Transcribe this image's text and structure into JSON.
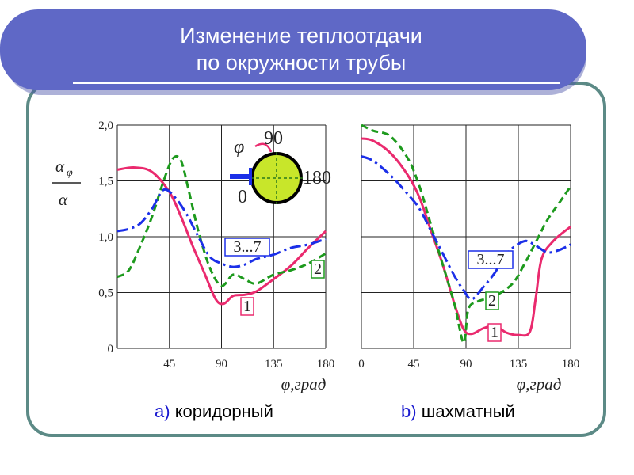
{
  "title": {
    "line1": "Изменение теплоотдачи",
    "line2": "по окружности трубы"
  },
  "colors": {
    "title_bar": "#5f68c6",
    "frame": "#5c8a86",
    "series_1": "#ea2a6e",
    "series_2": "#1d9a1d",
    "series_3_7": "#1b2fe8",
    "tube_fill": "#c8e62a"
  },
  "captions": [
    {
      "letter": "a)",
      "text": "коридорный"
    },
    {
      "letter": "b)",
      "text": "шахматный"
    }
  ],
  "y_axis_label": {
    "top": "α",
    "top_sub": "φ",
    "bottom": "α"
  },
  "inset": {
    "phi": "φ",
    "label_90": "90",
    "label_180": "180",
    "label_0": "0"
  },
  "chart_data": [
    {
      "type": "line",
      "caption": "a) коридорный",
      "xlabel": "φ,град",
      "x_ticks": [
        "45",
        "90",
        "135",
        "180"
      ],
      "y_ticks": [
        "0",
        "0,5",
        "1,0",
        "1,5",
        "2,0"
      ],
      "xlim": [
        0,
        180
      ],
      "ylim": [
        0,
        2.0
      ],
      "grid": true,
      "series": [
        {
          "name": "1",
          "style": "solid",
          "x": [
            0,
            15,
            30,
            45,
            55,
            65,
            75,
            85,
            92,
            100,
            110,
            120,
            135,
            150,
            165,
            180
          ],
          "y": [
            1.6,
            1.62,
            1.58,
            1.4,
            1.18,
            0.92,
            0.68,
            0.44,
            0.4,
            0.47,
            0.48,
            0.51,
            0.62,
            0.74,
            0.9,
            1.05
          ]
        },
        {
          "name": "2",
          "style": "dashed",
          "x": [
            0,
            10,
            20,
            30,
            40,
            48,
            55,
            62,
            70,
            80,
            90,
            100,
            110,
            120,
            135,
            150,
            165,
            180
          ],
          "y": [
            0.64,
            0.7,
            0.92,
            1.18,
            1.5,
            1.7,
            1.68,
            1.4,
            1.05,
            0.72,
            0.56,
            0.66,
            0.62,
            0.58,
            0.66,
            0.7,
            0.76,
            0.85
          ]
        },
        {
          "name": "3...7",
          "style": "dashdot",
          "x": [
            0,
            10,
            20,
            30,
            40,
            50,
            60,
            70,
            80,
            90,
            100,
            110,
            120,
            135,
            150,
            165,
            180
          ],
          "y": [
            1.05,
            1.07,
            1.12,
            1.25,
            1.42,
            1.35,
            1.2,
            1.0,
            0.82,
            0.76,
            0.73,
            0.75,
            0.8,
            0.84,
            0.9,
            0.93,
            0.98
          ]
        }
      ],
      "labels": [
        "1",
        "2",
        "3...7"
      ]
    },
    {
      "type": "line",
      "caption": "b) шахматный",
      "xlabel": "φ,град",
      "x_ticks": [
        "0",
        "45",
        "90",
        "135",
        "180"
      ],
      "y_ticks": [],
      "xlim": [
        0,
        180
      ],
      "ylim": [
        0,
        2.0
      ],
      "grid": true,
      "series": [
        {
          "name": "1",
          "style": "solid",
          "x": [
            0,
            10,
            25,
            40,
            50,
            60,
            70,
            80,
            88,
            95,
            105,
            115,
            125,
            135,
            145,
            150,
            155,
            165,
            180
          ],
          "y": [
            1.88,
            1.86,
            1.75,
            1.55,
            1.35,
            1.05,
            0.75,
            0.4,
            0.17,
            0.13,
            0.18,
            0.2,
            0.14,
            0.12,
            0.15,
            0.45,
            0.8,
            0.96,
            1.09
          ]
        },
        {
          "name": "2",
          "style": "dashed",
          "x": [
            0,
            10,
            25,
            40,
            50,
            60,
            70,
            80,
            88,
            92,
            100,
            115,
            130,
            140,
            150,
            160,
            170,
            180
          ],
          "y": [
            2.0,
            1.95,
            1.9,
            1.7,
            1.45,
            1.1,
            0.75,
            0.4,
            0.05,
            0.35,
            0.42,
            0.47,
            0.58,
            0.75,
            0.95,
            1.15,
            1.3,
            1.45
          ]
        },
        {
          "name": "3...7",
          "style": "dashdot",
          "x": [
            0,
            10,
            25,
            40,
            50,
            60,
            70,
            80,
            88,
            95,
            105,
            115,
            125,
            140,
            150,
            160,
            170,
            180
          ],
          "y": [
            1.72,
            1.68,
            1.55,
            1.38,
            1.25,
            1.05,
            0.85,
            0.65,
            0.52,
            0.44,
            0.55,
            0.68,
            0.85,
            0.96,
            0.92,
            0.86,
            0.88,
            0.93
          ]
        }
      ],
      "labels": [
        "3...7",
        "2",
        "1"
      ]
    }
  ]
}
